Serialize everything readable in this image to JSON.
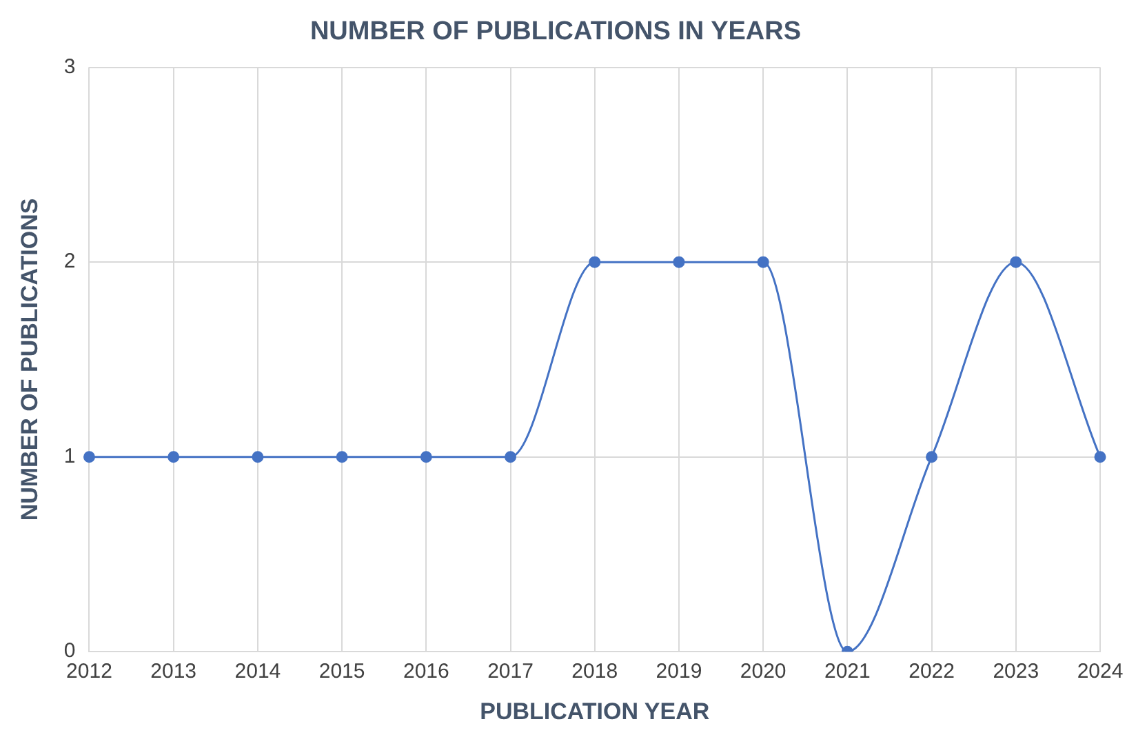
{
  "chart_data": {
    "type": "line",
    "title": "NUMBER OF PUBLICATIONS IN YEARS",
    "xlabel": "PUBLICATION YEAR",
    "ylabel": "NUMBER OF PUBLICATIONS",
    "categories": [
      "2012",
      "2013",
      "2014",
      "2015",
      "2016",
      "2017",
      "2018",
      "2019",
      "2020",
      "2021",
      "2022",
      "2023",
      "2024"
    ],
    "series": [
      {
        "color": "#4472c4",
        "values": [
          1,
          1,
          1,
          1,
          1,
          1,
          2,
          2,
          2,
          0,
          1,
          2,
          1
        ]
      }
    ],
    "ylim": [
      0,
      3
    ],
    "yticks": [
      0,
      1,
      2,
      3
    ],
    "grid": true,
    "legend": false,
    "marker": "circle",
    "line_style": "solid"
  }
}
